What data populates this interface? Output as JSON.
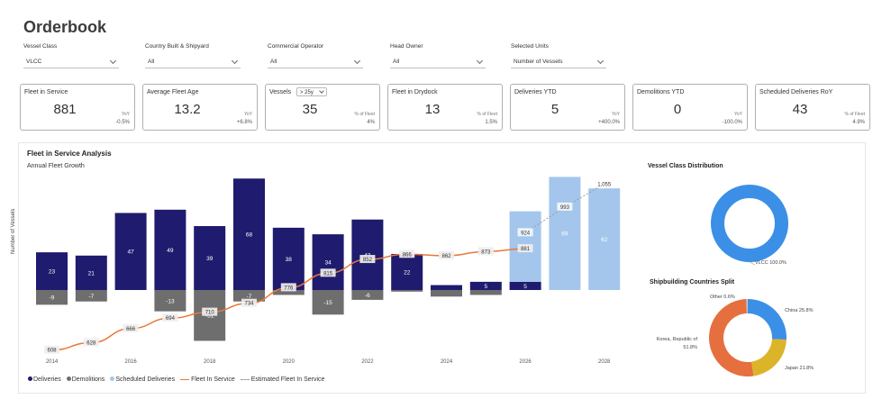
{
  "title": "Orderbook",
  "filters": [
    {
      "label": "Vessel Class",
      "value": "VLCC"
    },
    {
      "label": "Country Built & Shipyard",
      "value": "All"
    },
    {
      "label": "Commercial Operator",
      "value": "All"
    },
    {
      "label": "Head Owner",
      "value": "All"
    },
    {
      "label": "Selected Units",
      "value": "Number of Vessels"
    }
  ],
  "cards": [
    {
      "title": "Fleet in Service",
      "value": "881",
      "sub": "YoY",
      "pct": "-0.5%"
    },
    {
      "title": "Average Fleet Age",
      "value": "13.2",
      "sub": "YoY",
      "pct": "+6.8%"
    },
    {
      "title": "Vessels",
      "dropdown": "> 25y",
      "value": "35",
      "sub": "% of Fleet",
      "pct": "4%"
    },
    {
      "title": "Fleet in Drydock",
      "value": "13",
      "sub": "% of Fleet",
      "pct": "1.5%"
    },
    {
      "title": "Deliveries YTD",
      "value": "5",
      "sub": "YoY",
      "pct": "+400.0%"
    },
    {
      "title": "Demolitions YTD",
      "value": "0",
      "sub": "YoY",
      "pct": "-100.0%"
    },
    {
      "title": "Scheduled Deliveries RoY",
      "value": "43",
      "sub": "% of Fleet",
      "pct": "4.9%"
    }
  ],
  "panel": {
    "title": "Fleet in Service Analysis",
    "subtitle": "Annual Fleet Growth",
    "right_top_title": "Vessel Class Distribution",
    "right_bottom_title": "Shipbuilding Countries Split"
  },
  "legend": [
    "Deliveries",
    "Demolitions",
    "Scheduled Deliveries",
    "Fleet In Service",
    "Estimated Fleet In Service"
  ],
  "colors": {
    "deliveries": "#1f1b6e",
    "demolitions": "#6e6e6e",
    "scheduled": "#a4c6ec",
    "fleet": "#e8783a",
    "estimated": "#9a9a9a",
    "donut_blue": "#3b8fe6",
    "china": "#3b8fe6",
    "japan": "#dcb42a",
    "korea": "#e66f3f"
  },
  "chart_data": [
    {
      "type": "bar",
      "title": "Annual Fleet Growth",
      "ylabel": "Number of Vessels",
      "categories": [
        "2014",
        "2015",
        "2016",
        "2017",
        "2018",
        "2019",
        "2020",
        "2021",
        "2022",
        "2023",
        "2024",
        "2025",
        "2026",
        "2027",
        "2028"
      ],
      "x_tick_labels": [
        "2014",
        "2016",
        "2018",
        "2020",
        "2022",
        "2024",
        "2026",
        "2028"
      ],
      "series": [
        {
          "name": "Deliveries",
          "values": [
            23,
            21,
            47,
            49,
            39,
            68,
            38,
            34,
            43,
            22,
            3,
            5,
            5,
            null,
            null
          ],
          "labels": [
            "23",
            "21",
            "47",
            "49",
            "39",
            "68",
            "38",
            "34",
            "43",
            "22",
            "",
            "5",
            "5",
            "",
            ""
          ]
        },
        {
          "name": "Demolitions",
          "values": [
            -9,
            -7,
            0,
            -13,
            -31,
            -7,
            -3,
            -15,
            -6,
            -1,
            -4,
            -3,
            0,
            null,
            null
          ],
          "labels": [
            "-9",
            "-7",
            "",
            "-13",
            "-31",
            "-7",
            "",
            "-15",
            "-6",
            "",
            "",
            "",
            "",
            "",
            ""
          ]
        },
        {
          "name": "Scheduled Deliveries",
          "values": [
            null,
            null,
            null,
            null,
            null,
            null,
            null,
            null,
            null,
            null,
            null,
            null,
            43,
            69,
            62
          ],
          "labels": [
            "",
            "",
            "",
            "",
            "",
            "",
            "",
            "",
            "",
            "",
            "",
            "",
            "43",
            "69",
            "62"
          ]
        },
        {
          "name": "Fleet In Service",
          "values": [
            608,
            628,
            666,
            694,
            710,
            734,
            776,
            815,
            852,
            866,
            862,
            873,
            881,
            null,
            null
          ],
          "labels": [
            "608",
            "628",
            "666",
            "694",
            "710",
            "734",
            "776",
            "815",
            "852",
            "866",
            "862",
            "873",
            "881",
            "",
            ""
          ]
        },
        {
          "name": "Estimated Fleet In Service",
          "values": [
            null,
            null,
            null,
            null,
            null,
            null,
            null,
            null,
            null,
            null,
            null,
            null,
            924,
            993,
            1055
          ],
          "labels": [
            "",
            "",
            "",
            "",
            "",
            "",
            "",
            "",
            "",
            "",
            "",
            "",
            "924",
            "993",
            "1,055"
          ]
        }
      ]
    },
    {
      "type": "pie",
      "title": "Vessel Class Distribution",
      "labels": [
        "VLCC"
      ],
      "values": [
        100.0
      ],
      "slice_labels": [
        "VLCC 100.0%"
      ]
    },
    {
      "type": "pie",
      "title": "Shipbuilding Countries Split",
      "labels": [
        "China",
        "Japan",
        "Korea, Republic of",
        "Other"
      ],
      "values": [
        25.8,
        21.8,
        51.8,
        0.6
      ],
      "slice_labels": [
        "China 25.8%",
        "Japan 21.8%",
        "Korea, Republic of 51.8%",
        "Other 0.6%"
      ]
    }
  ]
}
